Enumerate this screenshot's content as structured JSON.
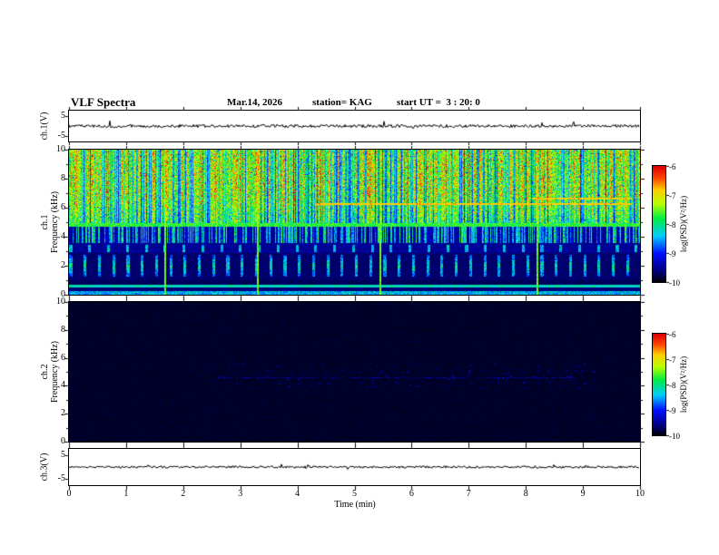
{
  "header": {
    "title": "VLF Spectra",
    "date": "Mar.14, 2026",
    "station": "station= KAG",
    "start_ut": "start UT =  3 : 20: 0"
  },
  "panels": {
    "ch1_wave": {
      "ylabel": "ch.1(V)",
      "ymax": "5",
      "ymin": "-5"
    },
    "ch1_spec": {
      "channel": "ch.1",
      "axis_label": "Frequency (kHz)",
      "yticks": [
        "10",
        "8",
        "6",
        "4",
        "2",
        "0"
      ]
    },
    "ch2_spec": {
      "channel": "ch.2",
      "axis_label": "Frequency (kHz)",
      "yticks": [
        "10",
        "8",
        "6",
        "4",
        "2",
        "0"
      ]
    },
    "ch3_wave": {
      "ylabel": "ch.3(V)",
      "ymax": "5",
      "ymin": "-5"
    }
  },
  "xaxis": {
    "label": "Time (min)",
    "ticks": [
      "0",
      "1",
      "2",
      "3",
      "4",
      "5",
      "6",
      "7",
      "8",
      "9",
      "10"
    ],
    "range": [
      0,
      10
    ]
  },
  "colorbar": {
    "label": "log(PSD)(V²/Hz)",
    "ticks": [
      "-6",
      "-7",
      "-8",
      "-9",
      "-10"
    ],
    "zlim": [
      -10,
      -6
    ],
    "stops": [
      {
        "v": 0.0,
        "color": "#000000"
      },
      {
        "v": 0.1,
        "color": "#000080"
      },
      {
        "v": 0.25,
        "color": "#0010ff"
      },
      {
        "v": 0.4,
        "color": "#00ccff"
      },
      {
        "v": 0.55,
        "color": "#00ee44"
      },
      {
        "v": 0.68,
        "color": "#bbff00"
      },
      {
        "v": 0.8,
        "color": "#ffcc00"
      },
      {
        "v": 0.9,
        "color": "#ff4400"
      },
      {
        "v": 1.0,
        "color": "#dd0000"
      }
    ]
  },
  "chart_data": [
    {
      "type": "line",
      "name": "ch1_waveform",
      "xlabel": "Time (min)",
      "ylabel": "ch.1(V)",
      "xlim": [
        0,
        10
      ],
      "ylim": [
        -5,
        5
      ],
      "summary": "Quiet voltage trace near 0 V with small-amplitude noise for the full 10 minutes",
      "seed": 7,
      "mid": 0.5,
      "amp": 0.1,
      "spike_prob": 0.02
    },
    {
      "type": "heatmap",
      "name": "ch1_spectrogram",
      "xlabel": "Time (min)",
      "ylabel": "ch.1 Frequency (kHz)",
      "xlim": [
        0,
        10
      ],
      "ylim": [
        0,
        10
      ],
      "zlabel": "log(PSD)(V²/Hz)",
      "zlim": [
        -10,
        -6
      ],
      "summary": "Intense bursty broadband emission above ~5 kHz (red/orange with green vertical gaps), bright yellow-green line near 4.8 kHz, striped green/blue band 3.6-4.7 kHz, dotted cyan blobs near 3.2 kHz, periodic cyan pulses 1.3-2.8 kHz, narrow cyan line near 0.6 kHz, green band at the bottom edge; thin yellow vertical marks near 1.7, 3.3, 5.4 and 8.2 min; yellow horizontal traces near 6.3-6.7 kHz after ~4.3 min",
      "seed": 42,
      "hot_band": {
        "f": [
          5.0,
          10.0
        ]
      },
      "yellow_line_band": {
        "f": [
          4.72,
          5.0
        ],
        "v": [
          0.5,
          0.65
        ]
      },
      "striped_band": {
        "f": [
          3.6,
          4.72
        ]
      },
      "blob_band": {
        "f": [
          2.9,
          3.6
        ],
        "blob_f": [
          3.0,
          3.45
        ],
        "period_min": 0.33,
        "duty": 0.15
      },
      "comb": {
        "f": [
          1.3,
          2.75
        ],
        "period_min": 0.25,
        "duty": 0.2
      },
      "cyan_line": {
        "f": [
          0.55,
          0.72
        ],
        "v": [
          0.38,
          0.53
        ]
      },
      "bottom_band": {
        "f": [
          0,
          0.3
        ],
        "v": [
          0.28,
          0.5
        ]
      },
      "vertical_lines_min": [
        1.67,
        3.3,
        5.45,
        8.2
      ],
      "horizontal_lines": [
        {
          "f": 6.3,
          "t": [
            4.3,
            9.85
          ],
          "v": 0.8
        },
        {
          "f": 6.65,
          "t": [
            8.1,
            9.85
          ],
          "v": 0.78
        }
      ]
    },
    {
      "type": "heatmap",
      "name": "ch2_spectrogram",
      "xlabel": "Time (min)",
      "ylabel": "ch.2 Frequency (kHz)",
      "xlim": [
        0,
        10
      ],
      "ylim": [
        0,
        10
      ],
      "zlabel": "log(PSD)(V²/Hz)",
      "zlim": [
        -10,
        -6
      ],
      "summary": "No significant signal: near-black background (about -10) with sparse faint blue speckles around 4-5.5 kHz between ~2.5 and ~9 min and a very faint dashed line near 4.6 kHz",
      "seed": 99,
      "base_v": 0.02,
      "base_noise": 0.025,
      "speckles": {
        "count": 260,
        "t": [
          2.3,
          9.2
        ],
        "f": [
          3.8,
          5.6
        ],
        "v": [
          0.08,
          0.22
        ]
      },
      "faint_line": {
        "f": 4.6,
        "t": [
          2.6,
          8.9
        ],
        "v": 0.16,
        "density": 0.5
      }
    },
    {
      "type": "line",
      "name": "ch3_waveform",
      "xlabel": "Time (min)",
      "ylabel": "ch.3(V)",
      "xlim": [
        0,
        10
      ],
      "ylim": [
        -5,
        5
      ],
      "summary": "Flat voltage trace near 0 V with very small noise for the full 10 minutes",
      "seed": 11,
      "mid": 0.5,
      "amp": 0.06,
      "spike_prob": 0.01
    }
  ]
}
